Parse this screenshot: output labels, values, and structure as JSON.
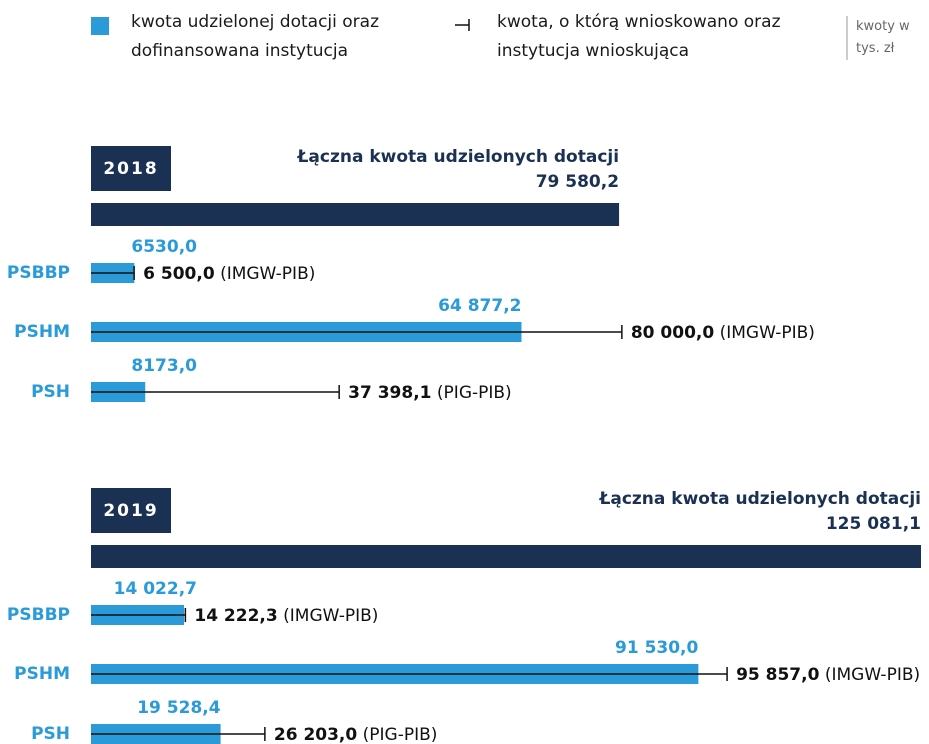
{
  "legend": {
    "items": [
      "kwota udzielonej dotacji oraz dofinansowana instytucja",
      "kwota, o którą wnioskowano oraz instytucja wnioskująca"
    ],
    "note": "kwoty w tys. zł"
  },
  "chart_data": [
    {
      "type": "bar",
      "title": "2018",
      "total_label": "Łączna kwota udzielonych dotacji",
      "total": 79580.2,
      "total_value_label": "79 580,2",
      "total_color": "#1b3153",
      "categories": [
        "PSBBP",
        "PSHM",
        "PSH"
      ],
      "series": [
        {
          "color": "#2a9bd8",
          "values": [
            6530.0,
            64877.2,
            8173.0
          ],
          "value_labels": [
            "6530,0",
            "64 877,2",
            "8173,0"
          ]
        },
        {
          "color": "#111111",
          "values": [
            6500.0,
            80000.0,
            37398.1
          ],
          "value_labels": [
            "6 500,0",
            "80 000,0",
            "37 398,1"
          ],
          "institutions": [
            "(IMGW-PIB)",
            "(IMGW-PIB)",
            "(PIG-PIB)"
          ]
        }
      ]
    },
    {
      "type": "bar",
      "title": "2019",
      "total_label": "Łączna kwota udzielonych dotacji",
      "total": 125081.1,
      "total_value_label": "125 081,1",
      "total_color": "#1b3153",
      "categories": [
        "PSBBP",
        "PSHM",
        "PSH"
      ],
      "series": [
        {
          "color": "#2a9bd8",
          "values": [
            14022.7,
            91530.0,
            19528.4
          ],
          "value_labels": [
            "14 022,7",
            "91 530,0",
            "19 528,4"
          ]
        },
        {
          "color": "#111111",
          "values": [
            14222.3,
            95857.0,
            26203.0
          ],
          "value_labels": [
            "14 222,3",
            "95 857,0",
            "26 203,0"
          ],
          "institutions": [
            "(IMGW-PIB)",
            "(IMGW-PIB)",
            "(PIG-PIB)"
          ]
        }
      ]
    }
  ]
}
